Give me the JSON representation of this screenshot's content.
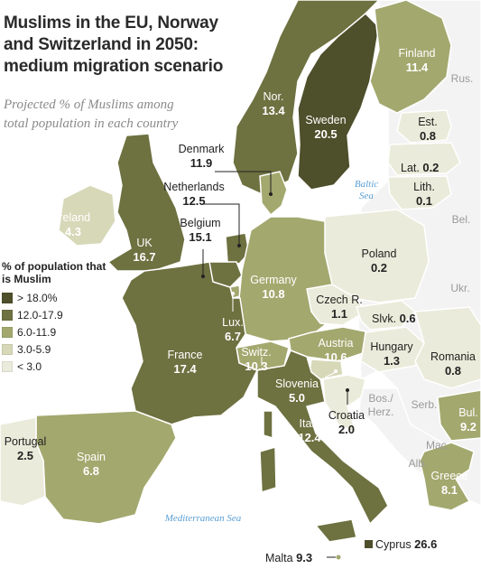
{
  "title": "Muslims in the EU, Norway and Switzerland in 2050: medium migration scenario",
  "subtitle": "Projected % of Muslims among total population in each country",
  "legend": {
    "title": "% of population that is Muslim",
    "items": [
      {
        "label": "> 18.0%",
        "color": "#4e4f2b"
      },
      {
        "label": "12.0-17.9",
        "color": "#6e7140"
      },
      {
        "label": "6.0-11.9",
        "color": "#a3a86e"
      },
      {
        "label": "3.0-5.9",
        "color": "#d6d8b8"
      },
      {
        "label": "< 3.0",
        "color": "#ebebdb"
      }
    ]
  },
  "colors": {
    "tier1": "#4e4f2b",
    "tier2": "#6e7140",
    "tier3": "#a3a86e",
    "tier4": "#d6d8b8",
    "tier5": "#ebebdb",
    "nonmember": "#f3f3f3",
    "sea": "#ffffff",
    "border": "#ffffff",
    "sea_text": "#5a9fd4"
  },
  "countries": {
    "finland": {
      "name": "Finland",
      "value": "11.4"
    },
    "norway": {
      "name": "Nor.",
      "value": "13.4"
    },
    "sweden": {
      "name": "Sweden",
      "value": "20.5"
    },
    "estonia": {
      "name": "Est.",
      "value": "0.8"
    },
    "latvia": {
      "name": "Lat.",
      "value": "0.2"
    },
    "lithuania": {
      "name": "Lith.",
      "value": "0.1"
    },
    "denmark": {
      "name": "Denmark",
      "value": "11.9"
    },
    "netherlands": {
      "name": "Netherlands",
      "value": "12.5"
    },
    "belgium": {
      "name": "Belgium",
      "value": "15.1"
    },
    "ireland": {
      "name": "Ireland",
      "value": "4.3"
    },
    "uk": {
      "name": "UK",
      "value": "16.7"
    },
    "poland": {
      "name": "Poland",
      "value": "0.2"
    },
    "germany": {
      "name": "Germany",
      "value": "10.8"
    },
    "czech": {
      "name": "Czech R.",
      "value": "1.1"
    },
    "slovakia": {
      "name": "Slvk.",
      "value": "0.6"
    },
    "luxembourg": {
      "name": "Lux.",
      "value": "6.7"
    },
    "france": {
      "name": "France",
      "value": "17.4"
    },
    "austria": {
      "name": "Austria",
      "value": "10.6"
    },
    "hungary": {
      "name": "Hungary",
      "value": "1.3"
    },
    "romania": {
      "name": "Romania",
      "value": "0.8"
    },
    "switzerland": {
      "name": "Switz.",
      "value": "10.3"
    },
    "slovenia": {
      "name": "Slovenia",
      "value": "5.0"
    },
    "croatia": {
      "name": "Croatia",
      "value": "2.0"
    },
    "bulgaria": {
      "name": "Bul.",
      "value": "9.2"
    },
    "italy": {
      "name": "Italy",
      "value": "12.4"
    },
    "portugal": {
      "name": "Portugal",
      "value": "2.5"
    },
    "spain": {
      "name": "Spain",
      "value": "6.8"
    },
    "greece": {
      "name": "Greece",
      "value": "8.1"
    },
    "malta": {
      "name": "Malta",
      "value": "9.3"
    },
    "cyprus": {
      "name": "Cyprus",
      "value": "26.6"
    }
  },
  "non_members": {
    "russia": "Rus.",
    "belarus": "Bel.",
    "ukraine": "Ukr.",
    "bosnia": "Bos./ Herz.",
    "serbia": "Serb.",
    "macedonia": "Mac.",
    "albania": "Alb."
  },
  "seas": {
    "baltic": "Baltic Sea",
    "mediterranean": "Mediterranean Sea"
  }
}
